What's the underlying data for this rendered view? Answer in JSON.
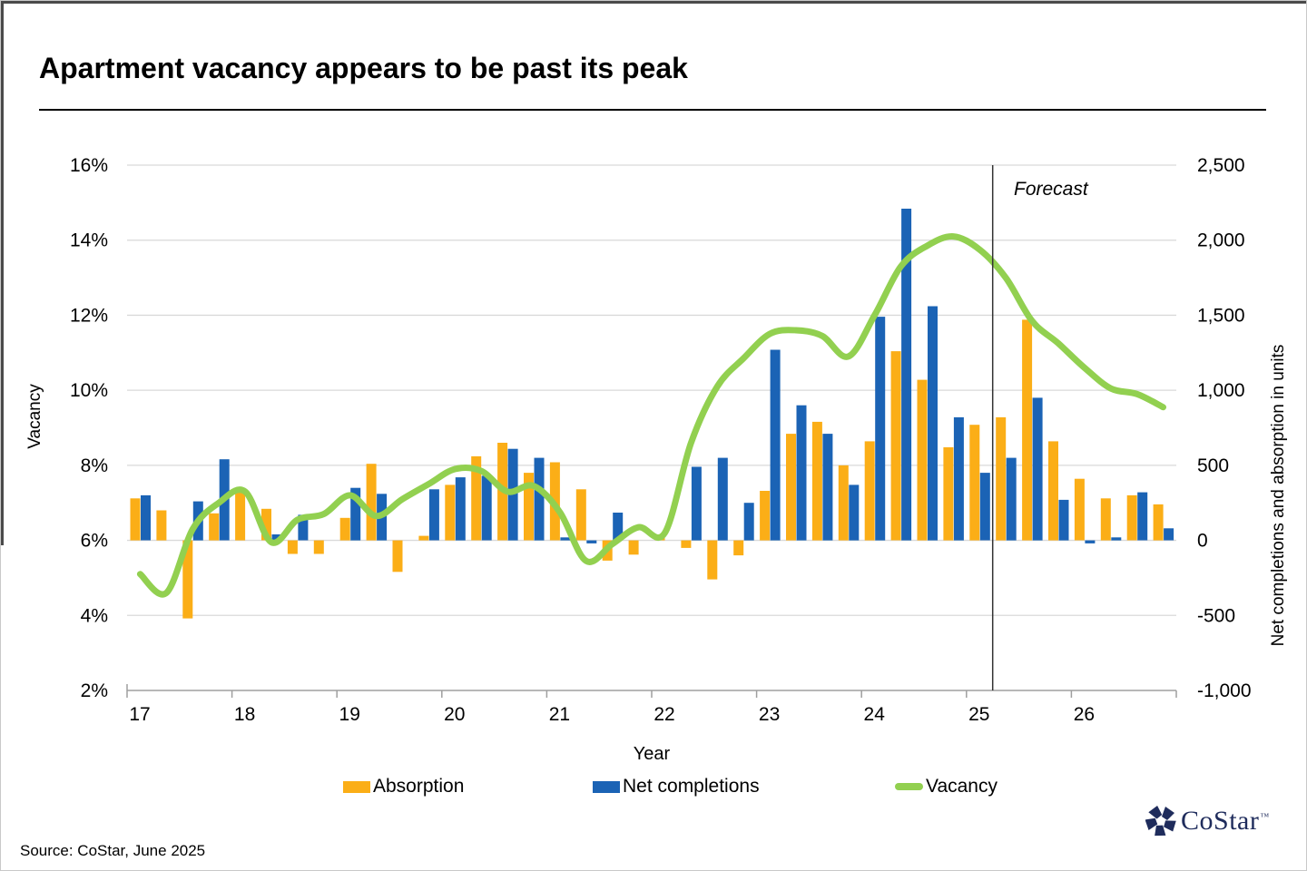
{
  "header": {
    "title": "Apartment vacancy appears to be past its peak"
  },
  "source": {
    "text": "Source: CoStar, June 2025"
  },
  "logo": {
    "text": "CoStar",
    "tm": "TM"
  },
  "forecast": {
    "label": "Forecast"
  },
  "colors": {
    "absorption": "#FBAE17",
    "net_completions": "#1B63B5",
    "vacancy": "#92D050",
    "grid": "#D9D9D9",
    "axis": "#9F9F9F",
    "forecast_line": "#333333",
    "logo_navy": "#1F2C5C",
    "text": "#000000"
  },
  "legend": [
    {
      "label": "Absorption",
      "swatch": "rect",
      "color": "#FBAE17"
    },
    {
      "label": "Net completions",
      "swatch": "rect",
      "color": "#1B63B5"
    },
    {
      "label": "Vacancy",
      "swatch": "line",
      "color": "#92D050"
    }
  ],
  "axes": {
    "x": {
      "title": "Year",
      "tick_labels": [
        "17",
        "18",
        "19",
        "20",
        "21",
        "22",
        "23",
        "24",
        "25",
        "26"
      ]
    },
    "y_left": {
      "title": "Vacancy",
      "min": 2,
      "max": 16,
      "tick_labels": [
        "16%",
        "14%",
        "12%",
        "10%",
        "8%",
        "6%",
        "4%",
        "2%"
      ]
    },
    "y_right": {
      "title": "Net completions and absorption in units",
      "min": -1000,
      "max": 2500,
      "tick_labels": [
        "2,500",
        "2,000",
        "1,500",
        "1,000",
        "500",
        "0",
        "-500",
        "-1,000"
      ]
    }
  },
  "chart_data": {
    "type": "combo",
    "title": "Apartment vacancy appears to be past its peak",
    "x_unit": "quarter",
    "grid": true,
    "legend_position": "bottom",
    "forecast_line_after_quarter_index": 33,
    "forecast_start": "2025 Q2",
    "series_meta": [
      {
        "name": "Absorption",
        "type": "bar",
        "axis": "right",
        "unit": "units"
      },
      {
        "name": "Net completions",
        "type": "bar",
        "axis": "right",
        "unit": "units"
      },
      {
        "name": "Vacancy",
        "type": "line",
        "axis": "left",
        "unit": "%"
      }
    ],
    "quarters": [
      {
        "year": 2017,
        "q": 1,
        "absorption": 280,
        "net_completions": 300,
        "vacancy_pct": 5.1
      },
      {
        "year": 2017,
        "q": 2,
        "absorption": 200,
        "net_completions": 0,
        "vacancy_pct": 4.6
      },
      {
        "year": 2017,
        "q": 3,
        "absorption": -520,
        "net_completions": 260,
        "vacancy_pct": 6.3
      },
      {
        "year": 2017,
        "q": 4,
        "absorption": 180,
        "net_completions": 540,
        "vacancy_pct": 7.0
      },
      {
        "year": 2018,
        "q": 1,
        "absorption": 350,
        "net_completions": 0,
        "vacancy_pct": 7.3
      },
      {
        "year": 2018,
        "q": 2,
        "absorption": 210,
        "net_completions": 40,
        "vacancy_pct": 5.95
      },
      {
        "year": 2018,
        "q": 3,
        "absorption": -90,
        "net_completions": 170,
        "vacancy_pct": 6.55
      },
      {
        "year": 2018,
        "q": 4,
        "absorption": -90,
        "net_completions": 0,
        "vacancy_pct": 6.7
      },
      {
        "year": 2019,
        "q": 1,
        "absorption": 150,
        "net_completions": 350,
        "vacancy_pct": 7.2
      },
      {
        "year": 2019,
        "q": 2,
        "absorption": 510,
        "net_completions": 310,
        "vacancy_pct": 6.65
      },
      {
        "year": 2019,
        "q": 3,
        "absorption": -210,
        "net_completions": 0,
        "vacancy_pct": 7.1
      },
      {
        "year": 2019,
        "q": 4,
        "absorption": 30,
        "net_completions": 340,
        "vacancy_pct": 7.5
      },
      {
        "year": 2020,
        "q": 1,
        "absorption": 370,
        "net_completions": 420,
        "vacancy_pct": 7.9
      },
      {
        "year": 2020,
        "q": 2,
        "absorption": 560,
        "net_completions": 430,
        "vacancy_pct": 7.85
      },
      {
        "year": 2020,
        "q": 3,
        "absorption": 650,
        "net_completions": 610,
        "vacancy_pct": 7.3
      },
      {
        "year": 2020,
        "q": 4,
        "absorption": 450,
        "net_completions": 550,
        "vacancy_pct": 7.45
      },
      {
        "year": 2021,
        "q": 1,
        "absorption": 520,
        "net_completions": 20,
        "vacancy_pct": 6.75
      },
      {
        "year": 2021,
        "q": 2,
        "absorption": 340,
        "net_completions": -20,
        "vacancy_pct": 5.45
      },
      {
        "year": 2021,
        "q": 3,
        "absorption": -135,
        "net_completions": 185,
        "vacancy_pct": 5.9
      },
      {
        "year": 2021,
        "q": 4,
        "absorption": -95,
        "net_completions": 0,
        "vacancy_pct": 6.35
      },
      {
        "year": 2022,
        "q": 1,
        "absorption": 40,
        "net_completions": 0,
        "vacancy_pct": 6.2
      },
      {
        "year": 2022,
        "q": 2,
        "absorption": -50,
        "net_completions": 490,
        "vacancy_pct": 8.6
      },
      {
        "year": 2022,
        "q": 3,
        "absorption": -260,
        "net_completions": 550,
        "vacancy_pct": 10.1
      },
      {
        "year": 2022,
        "q": 4,
        "absorption": -100,
        "net_completions": 250,
        "vacancy_pct": 10.85
      },
      {
        "year": 2023,
        "q": 1,
        "absorption": 330,
        "net_completions": 1270,
        "vacancy_pct": 11.5
      },
      {
        "year": 2023,
        "q": 2,
        "absorption": 710,
        "net_completions": 900,
        "vacancy_pct": 11.6
      },
      {
        "year": 2023,
        "q": 3,
        "absorption": 790,
        "net_completions": 710,
        "vacancy_pct": 11.45
      },
      {
        "year": 2023,
        "q": 4,
        "absorption": 500,
        "net_completions": 370,
        "vacancy_pct": 10.9
      },
      {
        "year": 2024,
        "q": 1,
        "absorption": 660,
        "net_completions": 1490,
        "vacancy_pct": 12.0
      },
      {
        "year": 2024,
        "q": 2,
        "absorption": 1260,
        "net_completions": 2210,
        "vacancy_pct": 13.3
      },
      {
        "year": 2024,
        "q": 3,
        "absorption": 1070,
        "net_completions": 1560,
        "vacancy_pct": 13.85
      },
      {
        "year": 2024,
        "q": 4,
        "absorption": 620,
        "net_completions": 820,
        "vacancy_pct": 14.1
      },
      {
        "year": 2025,
        "q": 1,
        "absorption": 770,
        "net_completions": 450,
        "vacancy_pct": 13.75
      },
      {
        "year": 2025,
        "q": 2,
        "absorption": 820,
        "net_completions": 550,
        "vacancy_pct": 13.0
      },
      {
        "year": 2025,
        "q": 3,
        "absorption": 1470,
        "net_completions": 950,
        "vacancy_pct": 11.85
      },
      {
        "year": 2025,
        "q": 4,
        "absorption": 660,
        "net_completions": 270,
        "vacancy_pct": 11.25
      },
      {
        "year": 2026,
        "q": 1,
        "absorption": 410,
        "net_completions": -20,
        "vacancy_pct": 10.6
      },
      {
        "year": 2026,
        "q": 2,
        "absorption": 280,
        "net_completions": 20,
        "vacancy_pct": 10.05
      },
      {
        "year": 2026,
        "q": 3,
        "absorption": 300,
        "net_completions": 320,
        "vacancy_pct": 9.9
      },
      {
        "year": 2026,
        "q": 4,
        "absorption": 240,
        "net_completions": 80,
        "vacancy_pct": 9.55
      }
    ]
  }
}
